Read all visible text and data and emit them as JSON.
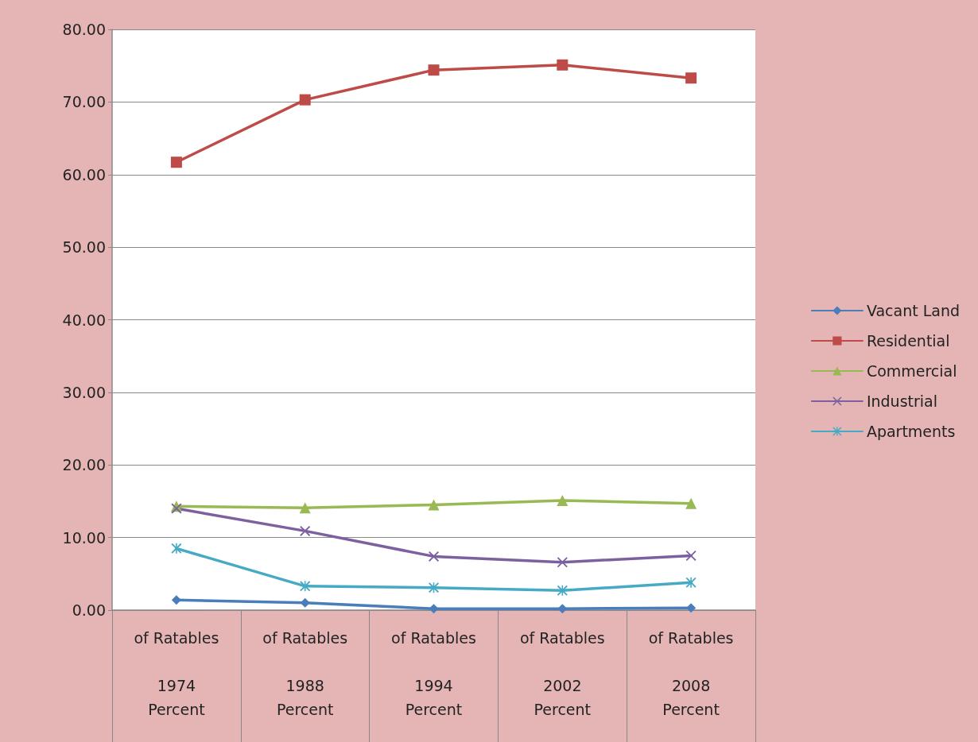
{
  "chart_data": {
    "type": "line",
    "categories": [
      "of Ratables\n\n1974\nPercent",
      "of Ratables\n\n1988\nPercent",
      "of Ratables\n\n1994\nPercent",
      "of Ratables\n\n2002\nPercent",
      "of Ratables\n\n2008\nPercent"
    ],
    "series": [
      {
        "name": "Vacant Land",
        "color": "#4a7ebb",
        "marker": "diamond",
        "values": [
          1.4,
          1.0,
          0.2,
          0.2,
          0.3
        ]
      },
      {
        "name": "Residential",
        "color": "#be4b48",
        "marker": "square",
        "values": [
          61.7,
          70.3,
          74.4,
          75.1,
          73.3
        ]
      },
      {
        "name": "Commercial",
        "color": "#98b954",
        "marker": "triangle",
        "values": [
          14.3,
          14.1,
          14.5,
          15.1,
          14.7
        ]
      },
      {
        "name": "Industrial",
        "color": "#7d60a0",
        "marker": "cross",
        "values": [
          14.0,
          10.9,
          7.4,
          6.6,
          7.5
        ]
      },
      {
        "name": "Apartments",
        "color": "#46aac5",
        "marker": "star",
        "values": [
          8.5,
          3.3,
          3.1,
          2.7,
          3.8
        ]
      }
    ],
    "ylim": [
      0,
      80
    ],
    "yticks": [
      {
        "value": 0,
        "label": "0.00"
      },
      {
        "value": 10,
        "label": "10.00"
      },
      {
        "value": 20,
        "label": "20.00"
      },
      {
        "value": 30,
        "label": "30.00"
      },
      {
        "value": 40,
        "label": "40.00"
      },
      {
        "value": 50,
        "label": "50.00"
      },
      {
        "value": 60,
        "label": "60.00"
      },
      {
        "value": 70,
        "label": "70.00"
      },
      {
        "value": 80,
        "label": "80.00"
      }
    ],
    "grid": "y",
    "legend": "right",
    "line_style": "solid"
  }
}
